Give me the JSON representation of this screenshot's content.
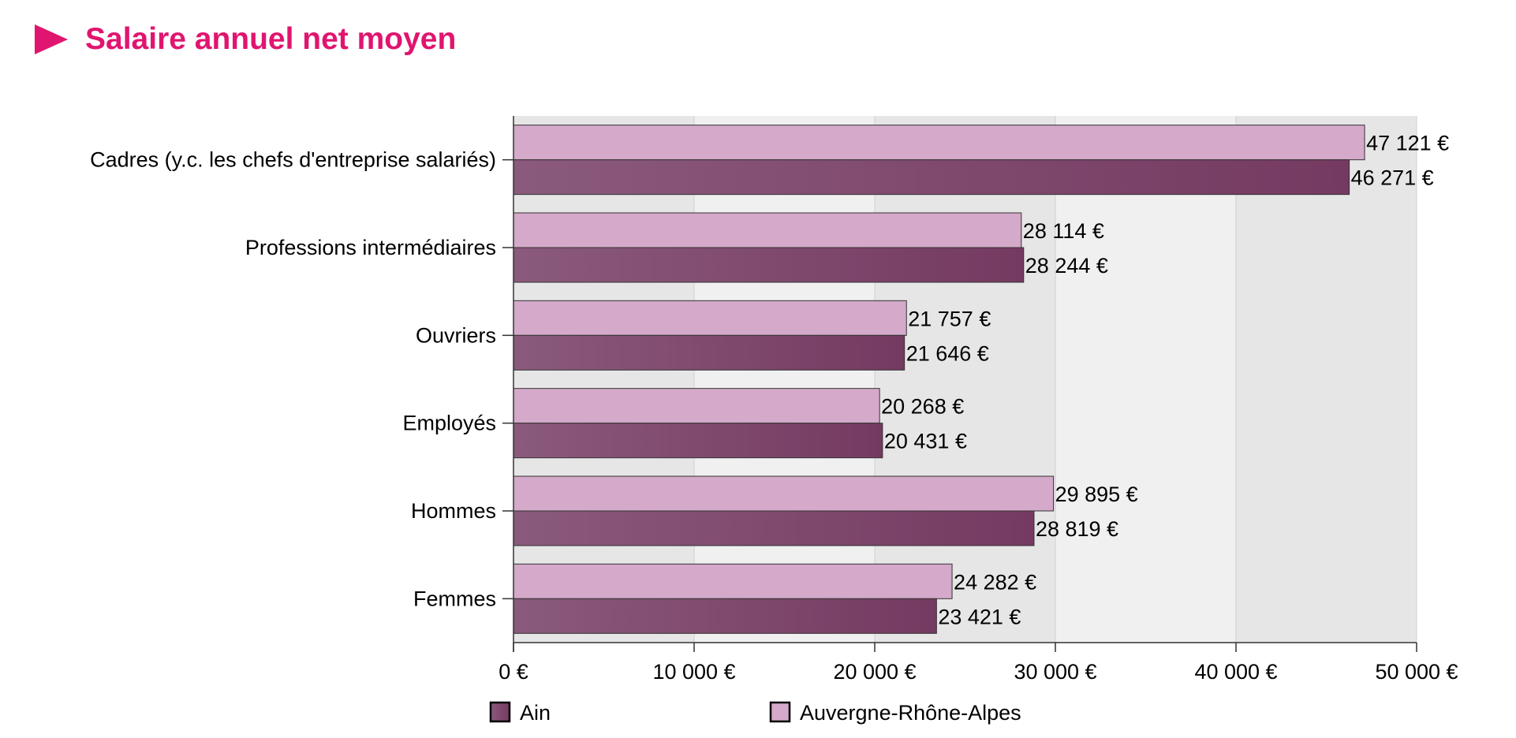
{
  "colors": {
    "title": "#e0156f",
    "ain": "#7a4068",
    "arа": "#d4a9ca"
  },
  "chart_data": {
    "type": "bar",
    "orientation": "horizontal",
    "title": "Salaire annuel net moyen",
    "categories": [
      "Cadres (y.c. les chefs d'entreprise salariés)",
      "Professions intermédiaires",
      "Ouvriers",
      "Employés",
      "Hommes",
      "Femmes"
    ],
    "series": [
      {
        "name": "Auvergne-Rhône-Alpes",
        "color": "#d4a9ca",
        "values": [
          47121,
          28114,
          21757,
          20268,
          29895,
          24282
        ],
        "labels": [
          "47 121 €",
          "28 114 €",
          "21 757 €",
          "20 268 €",
          "29 895 €",
          "24 282 €"
        ]
      },
      {
        "name": "Ain",
        "color": "#7a4068",
        "values": [
          46271,
          28244,
          21646,
          20431,
          28819,
          23421
        ],
        "labels": [
          "46 271 €",
          "28 244 €",
          "21 646 €",
          "20 431 €",
          "28 819 €",
          "23 421 €"
        ]
      }
    ],
    "xlim": [
      0,
      50000
    ],
    "xticks": [
      0,
      10000,
      20000,
      30000,
      40000,
      50000
    ],
    "xtick_labels": [
      "0 €",
      "10 000 €",
      "20 000 €",
      "30 000 €",
      "40 000 €",
      "50 000 €"
    ],
    "grid": true,
    "legend": {
      "position": "bottom",
      "entries": [
        "Ain",
        "Auvergne-Rhône-Alpes"
      ]
    }
  }
}
